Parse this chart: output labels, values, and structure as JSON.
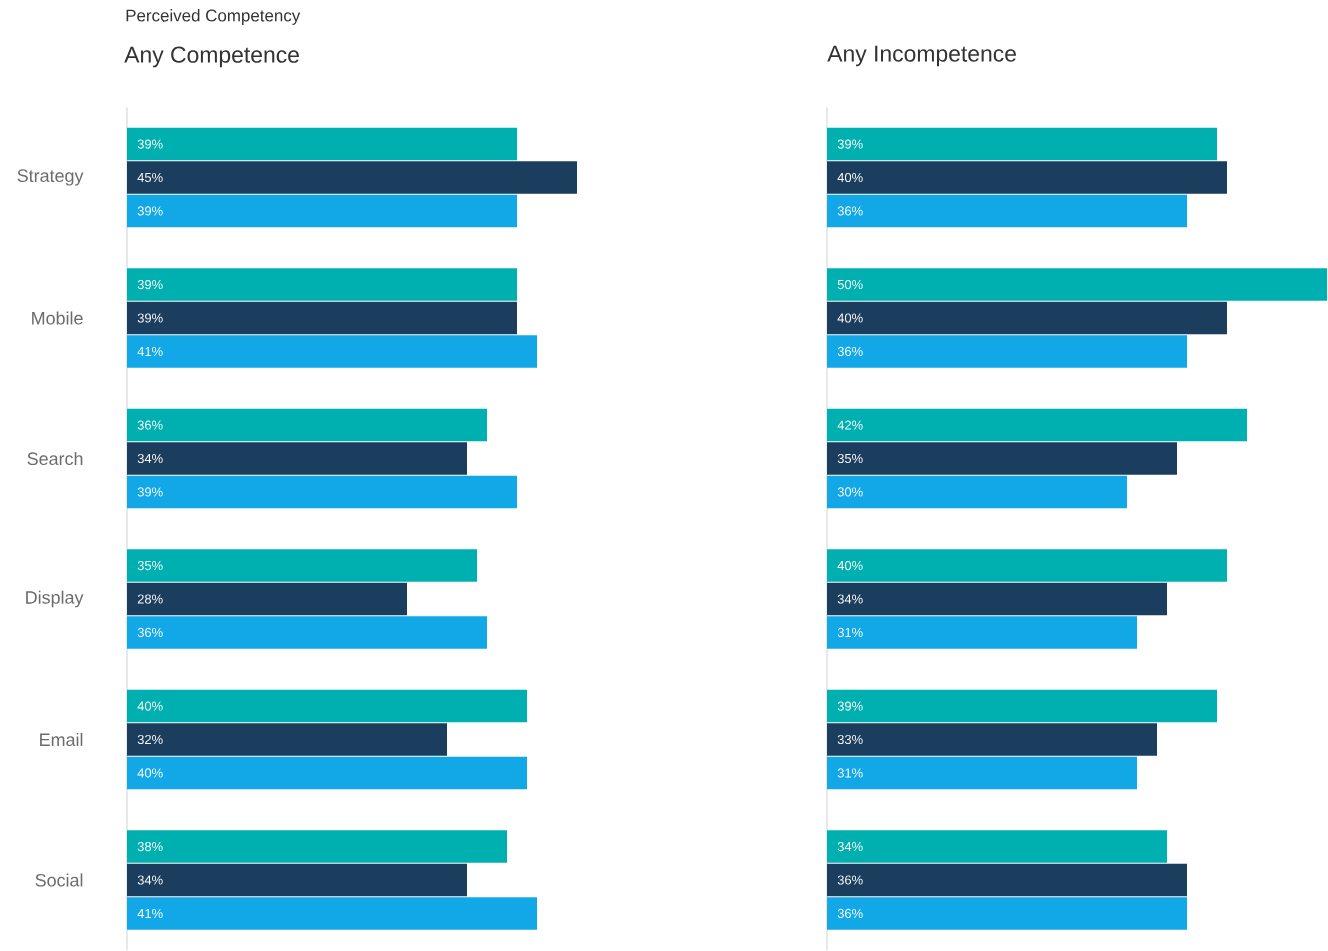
{
  "chart_data": [
    {
      "type": "bar",
      "orientation": "horizontal",
      "title": "Perceived Competency",
      "subtitle": "Any Competence",
      "categories": [
        "Strategy",
        "Mobile",
        "Search",
        "Display",
        "Email",
        "Social"
      ],
      "tick_labels": "y",
      "series": [
        {
          "color": "#00b0b0",
          "values": [
            39,
            39,
            36,
            35,
            40,
            38
          ],
          "value_labels": [
            "39%",
            "39%",
            "36%",
            "35%",
            "40%",
            "38%"
          ]
        },
        {
          "color": "#1b3d5e",
          "values": [
            45,
            39,
            34,
            28,
            32,
            34
          ],
          "value_labels": [
            "45%",
            "39%",
            "34%",
            "28%",
            "32%",
            "34%"
          ]
        },
        {
          "color": "#12a8e8",
          "values": [
            39,
            41,
            39,
            36,
            40,
            41
          ],
          "value_labels": [
            "39%",
            "41%",
            "39%",
            "36%",
            "40%",
            "41%"
          ]
        }
      ]
    },
    {
      "type": "bar",
      "orientation": "horizontal",
      "title": "Any Incompetence",
      "categories": [
        null,
        null,
        null,
        null,
        null,
        null
      ],
      "series": [
        {
          "color": "#00b0b0",
          "values": [
            39,
            50,
            42,
            40,
            39,
            34
          ],
          "value_labels": [
            "39%",
            "50%",
            "42%",
            "40%",
            "39%",
            "34%"
          ]
        },
        {
          "color": "#1b3d5e",
          "values": [
            40,
            40,
            35,
            34,
            33,
            36
          ],
          "value_labels": [
            "40%",
            "40%",
            "35%",
            "34%",
            "33%",
            "36%"
          ]
        },
        {
          "color": "#12a8e8",
          "values": [
            36,
            36,
            30,
            31,
            31,
            36
          ],
          "value_labels": [
            "36%",
            "36%",
            "30%",
            "31%",
            "31%",
            "36%"
          ]
        }
      ]
    }
  ]
}
